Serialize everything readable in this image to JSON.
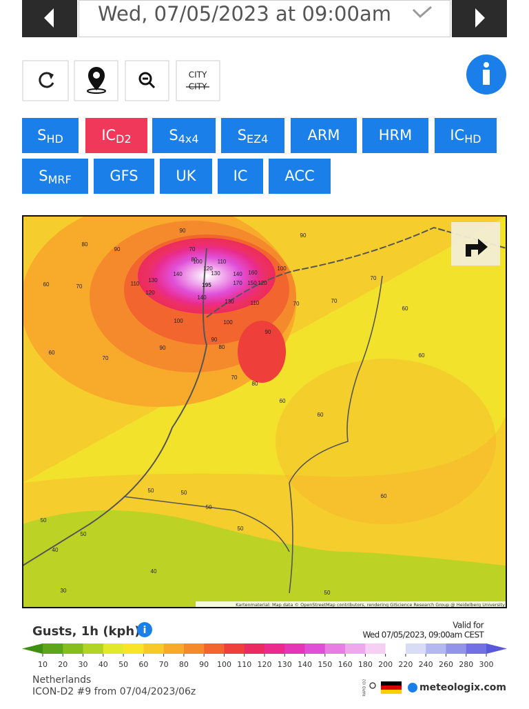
{
  "header": {
    "date": "Wed, 07/05/2023 at 09:00am"
  },
  "tools": {
    "city_top": "CITY",
    "city_bottom": "CITY"
  },
  "models": [
    {
      "main": "S",
      "sub": "HD",
      "active": false
    },
    {
      "main": "IC",
      "sub": "D2",
      "active": true
    },
    {
      "main": "S",
      "sub": "4x4",
      "active": false
    },
    {
      "main": "S",
      "sub": "EZ4",
      "active": false
    },
    {
      "main": "ARM",
      "active": false
    },
    {
      "main": "HRM",
      "active": false
    },
    {
      "main": "IC",
      "sub": "HD",
      "active": false
    },
    {
      "main": "S",
      "sub": "MRF",
      "active": false
    },
    {
      "main": "GFS",
      "active": false
    },
    {
      "main": "UK",
      "active": false
    },
    {
      "main": "IC",
      "active": false
    },
    {
      "main": "ACC",
      "active": false
    }
  ],
  "map": {
    "labels": [
      "195",
      "170",
      "160",
      "150",
      "140",
      "140",
      "140",
      "130",
      "130",
      "130",
      "120",
      "120",
      "120",
      "110",
      "110",
      "110",
      "100",
      "100",
      "100",
      "100",
      "90",
      "90",
      "90",
      "90",
      "90",
      "90",
      "80",
      "80",
      "80",
      "80",
      "70",
      "70",
      "70",
      "70",
      "70",
      "70",
      "70",
      "60",
      "60",
      "60",
      "60",
      "60",
      "60",
      "50",
      "50",
      "50",
      "50",
      "50",
      "50",
      "40",
      "40",
      "30",
      "50",
      "60"
    ],
    "attribution": "Kartenmaterial: Map data © OpenStreetMap contributors, rendering GIScience Research Group @ Heidelberg University"
  },
  "legend": {
    "title": "Gusts, 1h (kph)",
    "valid_label": "Valid for",
    "valid_time": "Wed 07/05/2023, 09:00am CEST",
    "scale": [
      10,
      20,
      30,
      40,
      50,
      60,
      70,
      80,
      90,
      100,
      110,
      120,
      130,
      140,
      150,
      160,
      180,
      200,
      220,
      240,
      260,
      280,
      300
    ],
    "colors": [
      "#3f8f12",
      "#5ea51a",
      "#86bd1f",
      "#b2d424",
      "#e2e82a",
      "#f8e52a",
      "#f9c92a",
      "#f8ab2a",
      "#f58a2c",
      "#f2652e",
      "#ee3f3b",
      "#ec2a62",
      "#ea2b8c",
      "#e636b8",
      "#e04fd8",
      "#e87ee4",
      "#f0a8ec",
      "#f6d0f4",
      "#ffffff",
      "#d8dcf6",
      "#b4b8f0",
      "#9294ea",
      "#7270e2",
      "#5a58da"
    ]
  },
  "footer": {
    "region": "Netherlands",
    "run": "ICON-D2 #9 from 07/04/2023/06z",
    "badge": "RAPID ID2",
    "brand": "meteologix.com"
  }
}
